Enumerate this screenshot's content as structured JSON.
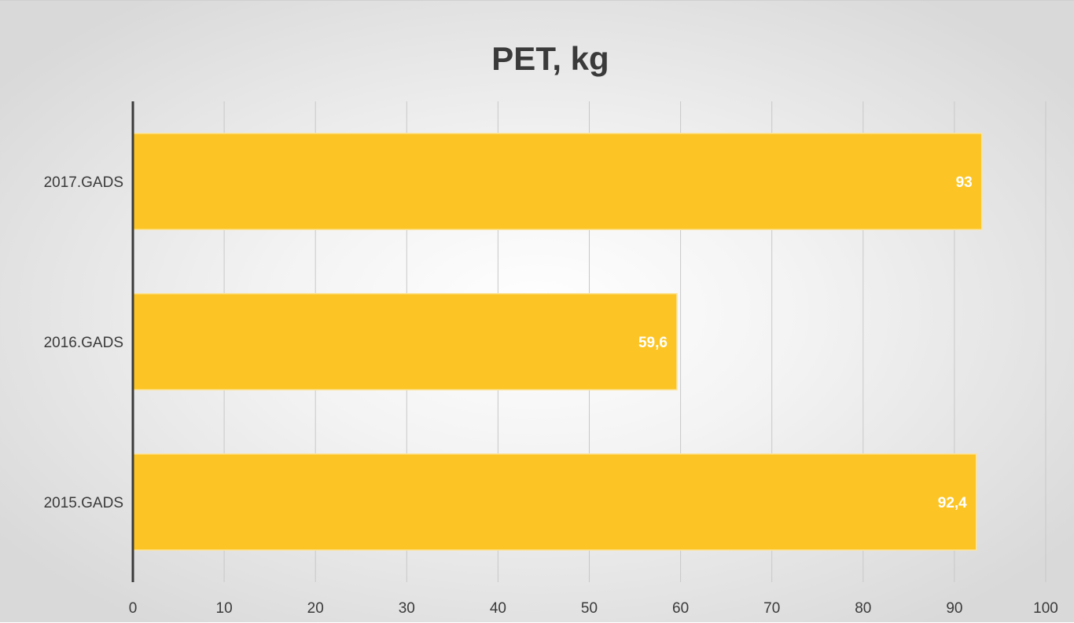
{
  "chart_data": {
    "type": "bar",
    "orientation": "horizontal",
    "title": "PET, kg",
    "categories": [
      "2017.GADS",
      "2016.GADS",
      "2015.GADS"
    ],
    "values": [
      93,
      59.6,
      92.4
    ],
    "data_labels": [
      "93",
      "59,6",
      "92,4"
    ],
    "xlim": [
      0,
      100
    ],
    "x_ticks": [
      "0",
      "10",
      "20",
      "30",
      "40",
      "50",
      "60",
      "70",
      "80",
      "90",
      "100"
    ],
    "xlabel": "",
    "ylabel": "",
    "grid": "vertical",
    "legend": "none",
    "colors": {
      "bar": "#fcc525",
      "bar_edge": "#fde49a",
      "grid": "#c8c8c8",
      "axis": "#3a3a3a"
    }
  }
}
